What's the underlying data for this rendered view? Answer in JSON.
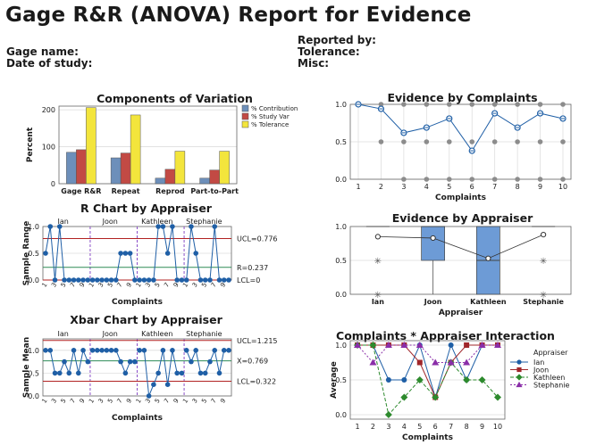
{
  "report": {
    "title": "Gage R&R (ANOVA) Report for Evidence",
    "left_fields": [
      "Gage name:",
      "Date of study:"
    ],
    "right_fields": [
      "Reported by:",
      "Tolerance:",
      "Misc:"
    ]
  },
  "chart_data": [
    {
      "id": "components",
      "type": "bar",
      "title": "Components of Variation",
      "ylabel": "Percent",
      "xlabel": "",
      "categories": [
        "Gage R&R",
        "Repeat",
        "Reprod",
        "Part-to-Part"
      ],
      "ylim": [
        0,
        210
      ],
      "yticks": [
        0,
        100,
        200
      ],
      "series": [
        {
          "name": "% Contribution",
          "color": "#6d8fba",
          "values": [
            85,
            70,
            15,
            15
          ]
        },
        {
          "name": "% Study Var",
          "color": "#c24a44",
          "values": [
            92,
            83,
            39,
            37
          ]
        },
        {
          "name": "% Tolerance",
          "color": "#f3e53c",
          "values": [
            206,
            186,
            88,
            88
          ]
        }
      ],
      "legend": "right"
    },
    {
      "id": "r-chart",
      "type": "line",
      "title": "R Chart by Appraiser",
      "ylabel": "Sample Range",
      "xlabel": "Complaints",
      "appraisers": [
        "Ian",
        "Joon",
        "Kathleen",
        "Stephanie"
      ],
      "x_ticks": [
        "1",
        "3",
        "5",
        "7",
        "9",
        "1",
        "3",
        "5",
        "7",
        "9",
        "1",
        "3",
        "5",
        "7",
        "9",
        "1",
        "3",
        "5",
        "7",
        "9"
      ],
      "ylim": [
        0,
        1
      ],
      "yticks": [
        "0.0",
        "0.5",
        "1.0"
      ],
      "values": [
        0.5,
        1,
        0,
        1,
        0,
        0,
        0,
        0,
        0,
        0,
        0,
        0,
        0,
        0,
        0,
        0,
        0.5,
        0.5,
        0.5,
        0,
        0,
        0,
        0,
        0,
        1,
        1,
        0.5,
        1,
        0,
        0,
        0,
        1,
        0.5,
        0,
        0,
        0,
        1,
        0,
        0,
        0
      ],
      "ucl": 0.776,
      "center": 0.237,
      "lcl": 0,
      "ucl_label": "UCL=0.776",
      "center_label": "R=0.237",
      "lcl_label": "LCL=0"
    },
    {
      "id": "xbar-chart",
      "type": "line",
      "title": "Xbar Chart by Appraiser",
      "ylabel": "Sample Mean",
      "xlabel": "Complaints",
      "appraisers": [
        "Ian",
        "Joon",
        "Kathleen",
        "Stephanie"
      ],
      "x_ticks": [
        "1",
        "3",
        "5",
        "7",
        "9",
        "1",
        "3",
        "5",
        "7",
        "9",
        "1",
        "3",
        "5",
        "7",
        "9",
        "1",
        "3",
        "5",
        "7",
        "9"
      ],
      "ylim": [
        0,
        1.25
      ],
      "yticks": [
        "0.0",
        "0.5",
        "1.0"
      ],
      "values": [
        1,
        1,
        0.5,
        0.5,
        0.75,
        0.5,
        1,
        0.5,
        1,
        0.75,
        1,
        1,
        1,
        1,
        1,
        1,
        0.75,
        0.5,
        0.75,
        0.75,
        1,
        1,
        0,
        0.25,
        0.5,
        1,
        0.25,
        1,
        0.5,
        0.5,
        1,
        0.75,
        1,
        0.5,
        0.5,
        0.75,
        1,
        0.5,
        1,
        1
      ],
      "ucl": 1.215,
      "center": 0.769,
      "lcl": 0.322,
      "ucl_label": "UCL=1.215",
      "center_label": "X=0.769",
      "lcl_label": "LCL=0.322"
    },
    {
      "id": "evidence-by-complaints",
      "type": "scatter",
      "title": "Evidence by Complaints",
      "xlabel": "Complaints",
      "ylabel": "",
      "x": [
        1,
        2,
        3,
        4,
        5,
        6,
        7,
        8,
        9,
        10
      ],
      "mean": [
        1.0,
        0.94,
        0.62,
        0.69,
        0.81,
        0.38,
        0.88,
        0.69,
        0.88,
        0.81
      ],
      "points": {
        "1": [
          1
        ],
        "2": [
          0.5,
          1
        ],
        "3": [
          0,
          0.5,
          1
        ],
        "4": [
          0,
          0.5,
          1
        ],
        "5": [
          0,
          0.5,
          1
        ],
        "6": [
          0,
          0.5,
          1
        ],
        "7": [
          0,
          0.5,
          1
        ],
        "8": [
          0,
          0.5,
          1
        ],
        "9": [
          0,
          0.5,
          1
        ],
        "10": [
          0,
          0.5,
          1
        ]
      },
      "ylim": [
        0,
        1
      ],
      "yticks": [
        "0.0",
        "0.5",
        "1.0"
      ]
    },
    {
      "id": "evidence-by-appraiser",
      "type": "box",
      "title": "Evidence by Appraiser",
      "xlabel": "Appraiser",
      "ylabel": "",
      "categories": [
        "Ian",
        "Joon",
        "Kathleen",
        "Stephanie"
      ],
      "boxes": [
        {
          "q1": 1,
          "median": 1,
          "q3": 1,
          "whisker_low": 1,
          "whisker_high": 1,
          "outliers": [
            0,
            0.5
          ],
          "mean": 0.85
        },
        {
          "q1": 0.5,
          "median": 1,
          "q3": 1,
          "whisker_low": 0,
          "whisker_high": 1,
          "outliers": [],
          "mean": 0.83
        },
        {
          "q1": 0,
          "median": 0.5,
          "q3": 1,
          "whisker_low": 0,
          "whisker_high": 1,
          "outliers": [],
          "mean": 0.53
        },
        {
          "q1": 1,
          "median": 1,
          "q3": 1,
          "whisker_low": 1,
          "whisker_high": 1,
          "outliers": [
            0,
            0.5
          ],
          "mean": 0.88
        }
      ],
      "ylim": [
        0,
        1
      ],
      "yticks": [
        "0.0",
        "0.5",
        "1.0"
      ]
    },
    {
      "id": "interaction",
      "type": "line",
      "title": "Complaints * Appraiser Interaction",
      "xlabel": "Complaints",
      "ylabel": "Average",
      "legend_title": "Appraiser",
      "x": [
        1,
        2,
        3,
        4,
        5,
        6,
        7,
        8,
        9,
        10
      ],
      "ylim": [
        0,
        1
      ],
      "yticks": [
        "0.0",
        "0.5",
        "1.0"
      ],
      "series": [
        {
          "name": "Ian",
          "color": "#1f5fa6",
          "marker": "circle",
          "values": [
            1,
            1,
            0.5,
            0.5,
            1,
            0.25,
            1,
            0.5,
            1,
            1
          ]
        },
        {
          "name": "Joon",
          "color": "#a0262a",
          "marker": "square",
          "values": [
            1,
            1,
            1,
            1,
            0.75,
            0.25,
            0.75,
            1,
            1,
            1
          ]
        },
        {
          "name": "Kathleen",
          "color": "#2d8a2d",
          "marker": "diamond",
          "values": [
            1,
            1,
            0,
            0.25,
            0.5,
            0.25,
            0.75,
            0.5,
            0.5,
            0.25
          ]
        },
        {
          "name": "Stephanie",
          "color": "#8a2ea8",
          "marker": "triangle",
          "values": [
            1,
            0.75,
            1,
            1,
            1,
            0.75,
            0.75,
            0.75,
            1,
            1
          ]
        }
      ],
      "legend": "right"
    }
  ]
}
